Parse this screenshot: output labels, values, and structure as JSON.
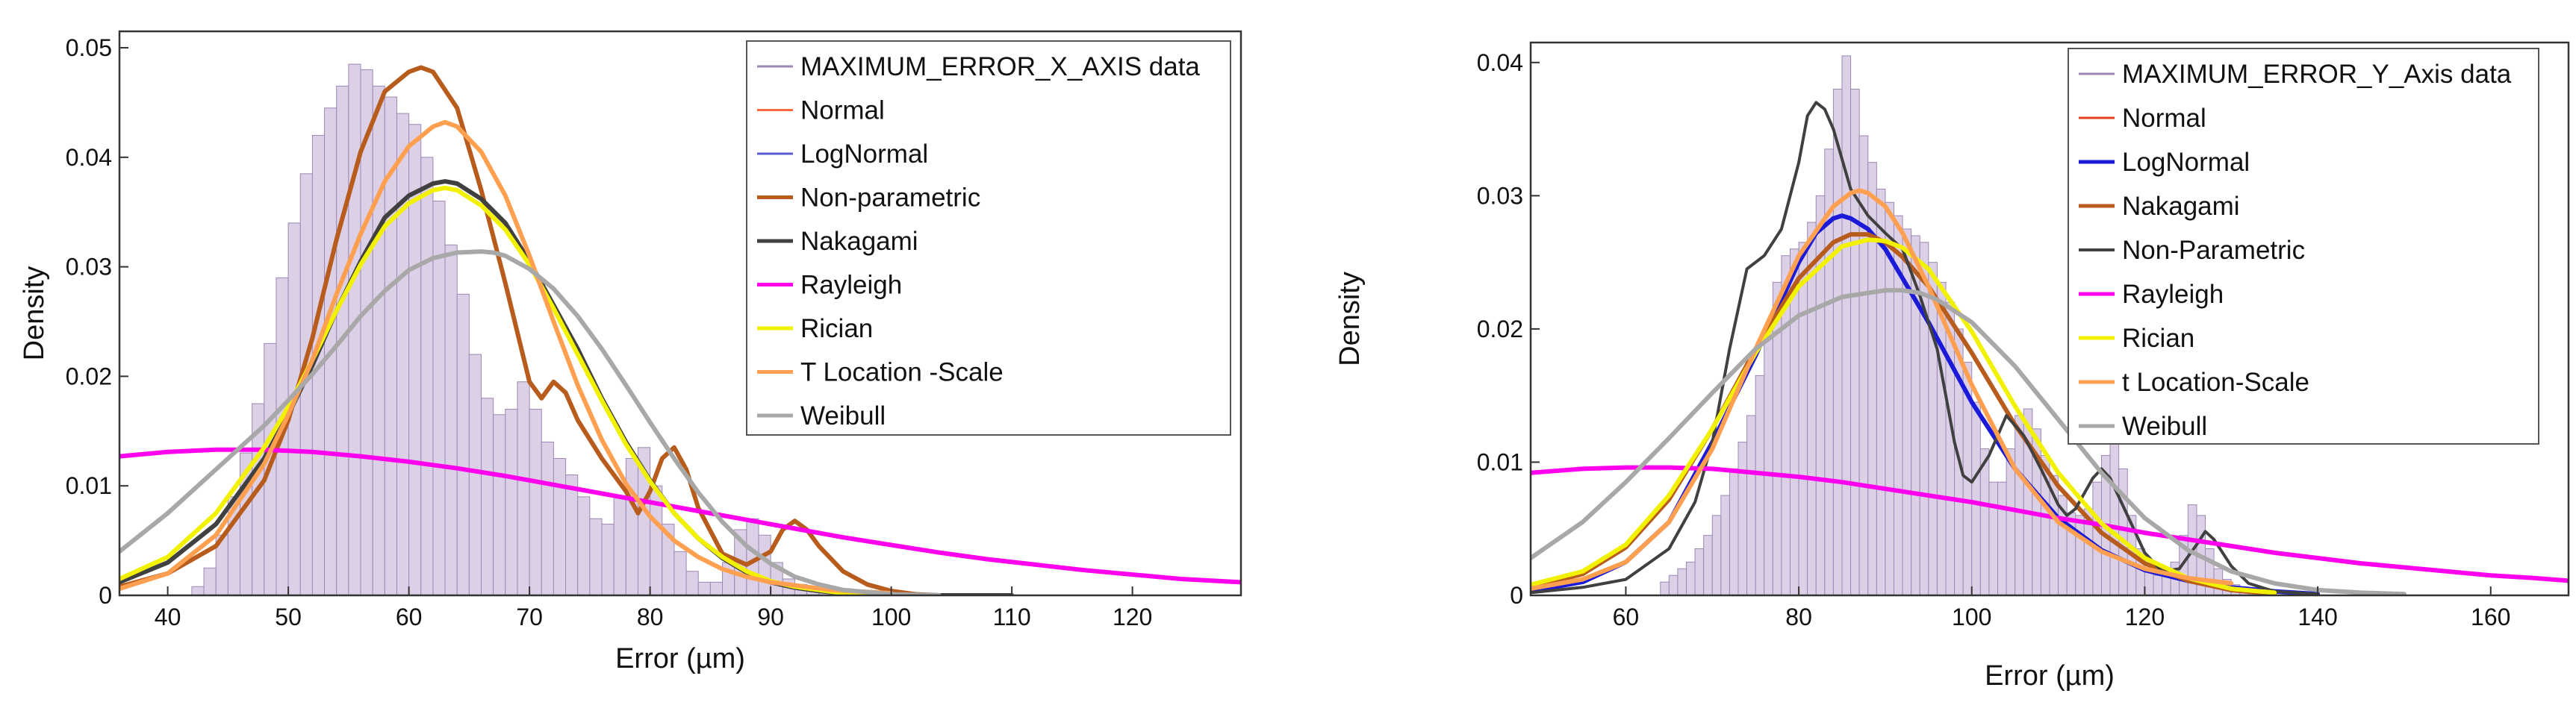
{
  "chart_data": [
    {
      "type": "histogram+line",
      "xlabel": "Error (µm)",
      "ylabel": "Density",
      "xlim": [
        36,
        129
      ],
      "ylim": [
        0,
        0.0515
      ],
      "xticks": [
        40,
        50,
        60,
        70,
        80,
        90,
        100,
        110,
        120
      ],
      "yticks": [
        0,
        0.01,
        0.02,
        0.03,
        0.04,
        0.05
      ],
      "ytick_labels": [
        "0",
        "0.01",
        "0.02",
        "0.03",
        "0.04",
        "0.05"
      ],
      "legend_placement": "top-right",
      "histogram": {
        "name": "MAXIMUM_ERROR_X_AXIS data",
        "color": "#9c88b4",
        "x_start": 42,
        "bin_width": 1,
        "values": [
          0.0008,
          0.0025,
          0.0055,
          0.009,
          0.013,
          0.0175,
          0.023,
          0.029,
          0.034,
          0.0385,
          0.042,
          0.0445,
          0.0465,
          0.0485,
          0.048,
          0.0465,
          0.0455,
          0.044,
          0.043,
          0.04,
          0.036,
          0.032,
          0.0275,
          0.022,
          0.018,
          0.0165,
          0.017,
          0.0195,
          0.017,
          0.014,
          0.0125,
          0.011,
          0.009,
          0.007,
          0.0065,
          0.009,
          0.0125,
          0.0135,
          0.01,
          0.0065,
          0.004,
          0.0022,
          0.0012,
          0.0012,
          0.003,
          0.006,
          0.007,
          0.0055,
          0.003,
          0.0015,
          0.001,
          0.0006,
          0.0003,
          0.0001
        ]
      },
      "series": [
        {
          "name": "Normal",
          "color": "#ff6a3d",
          "width": 3,
          "visible_curve": false
        },
        {
          "name": "LogNormal",
          "color": "#5b5bd6",
          "width": 3,
          "visible_curve": false
        },
        {
          "name": "Non-parametric",
          "color": "#b85c1e",
          "width": 6,
          "x": [
            36,
            40,
            44,
            48,
            50,
            52,
            54,
            56,
            58,
            60,
            61,
            62,
            64,
            66,
            68,
            70,
            71,
            72,
            73,
            74,
            76,
            78,
            79,
            80,
            81,
            82,
            83,
            84,
            86,
            88,
            90,
            91,
            92,
            93,
            94,
            96,
            98,
            100,
            102,
            104
          ],
          "y": [
            0.0008,
            0.002,
            0.0045,
            0.0105,
            0.016,
            0.0235,
            0.0325,
            0.0405,
            0.046,
            0.0478,
            0.0482,
            0.0478,
            0.0445,
            0.037,
            0.0285,
            0.0195,
            0.018,
            0.0195,
            0.0185,
            0.016,
            0.0125,
            0.0095,
            0.0075,
            0.0095,
            0.0125,
            0.0135,
            0.0115,
            0.008,
            0.0038,
            0.0028,
            0.004,
            0.006,
            0.0068,
            0.006,
            0.0045,
            0.0022,
            0.001,
            0.0004,
            0.0001,
            0.0
          ]
        },
        {
          "name": "Nakagami",
          "color": "#404040",
          "width": 6,
          "x": [
            36,
            40,
            44,
            48,
            50,
            52,
            54,
            56,
            58,
            60,
            62,
            63,
            64,
            66,
            68,
            70,
            72,
            74,
            76,
            78,
            80,
            82,
            84,
            86,
            88,
            90,
            92,
            94,
            96,
            100,
            104,
            110
          ],
          "y": [
            0.0012,
            0.003,
            0.0065,
            0.0125,
            0.0165,
            0.021,
            0.026,
            0.0305,
            0.0345,
            0.0365,
            0.0376,
            0.0378,
            0.0376,
            0.0362,
            0.034,
            0.0305,
            0.0265,
            0.0225,
            0.018,
            0.014,
            0.0105,
            0.0075,
            0.0052,
            0.0034,
            0.0021,
            0.0012,
            0.0007,
            0.0004,
            0.0002,
            0.0001,
            0.0,
            0.0
          ]
        },
        {
          "name": "Rayleigh",
          "color": "#ff00ee",
          "width": 6,
          "x": [
            36,
            40,
            44,
            46,
            48,
            52,
            56,
            60,
            64,
            68,
            72,
            76,
            80,
            84,
            88,
            92,
            96,
            100,
            104,
            108,
            112,
            116,
            120,
            124,
            129
          ],
          "y": [
            0.0127,
            0.0131,
            0.0133,
            0.0133,
            0.0133,
            0.0131,
            0.0127,
            0.0122,
            0.0116,
            0.0109,
            0.0101,
            0.0093,
            0.0085,
            0.0077,
            0.0069,
            0.0061,
            0.0053,
            0.0046,
            0.0039,
            0.0033,
            0.0028,
            0.0023,
            0.0019,
            0.0015,
            0.0012
          ]
        },
        {
          "name": "Rician",
          "color": "#f2f200",
          "width": 6,
          "x": [
            36,
            40,
            44,
            48,
            50,
            52,
            54,
            56,
            58,
            60,
            62,
            63,
            64,
            66,
            68,
            70,
            72,
            74,
            76,
            78,
            80,
            82,
            84,
            86,
            88,
            90,
            92,
            96,
            100
          ],
          "y": [
            0.0015,
            0.0035,
            0.0075,
            0.0135,
            0.0172,
            0.0215,
            0.026,
            0.0302,
            0.0337,
            0.0358,
            0.037,
            0.0372,
            0.037,
            0.0356,
            0.0334,
            0.0302,
            0.0262,
            0.022,
            0.0178,
            0.0138,
            0.0104,
            0.0075,
            0.0052,
            0.0035,
            0.0022,
            0.0013,
            0.0008,
            0.0002,
            0.0
          ]
        },
        {
          "name": "T Location -Scale",
          "color": "#ff9f50",
          "width": 6,
          "x": [
            36,
            40,
            44,
            48,
            50,
            52,
            54,
            56,
            58,
            60,
            62,
            63,
            64,
            66,
            68,
            70,
            72,
            74,
            76,
            78,
            80,
            82,
            84,
            86,
            88,
            90,
            95,
            100
          ],
          "y": [
            0.0006,
            0.002,
            0.0055,
            0.012,
            0.0165,
            0.0215,
            0.0275,
            0.033,
            0.0378,
            0.041,
            0.0428,
            0.0432,
            0.0428,
            0.0405,
            0.0365,
            0.031,
            0.025,
            0.0192,
            0.0142,
            0.0102,
            0.0072,
            0.005,
            0.0035,
            0.0024,
            0.0017,
            0.0012,
            0.0005,
            0.0002
          ]
        },
        {
          "name": "Weibull",
          "color": "#a8a8a8",
          "width": 6,
          "x": [
            36,
            40,
            44,
            48,
            50,
            52,
            54,
            56,
            58,
            60,
            62,
            64,
            66,
            67,
            68,
            70,
            72,
            74,
            76,
            78,
            80,
            82,
            84,
            86,
            88,
            90,
            92,
            94,
            96,
            100,
            104
          ],
          "y": [
            0.004,
            0.0075,
            0.0115,
            0.0155,
            0.0178,
            0.0202,
            0.0228,
            0.0255,
            0.0278,
            0.0297,
            0.0308,
            0.0313,
            0.0314,
            0.0313,
            0.031,
            0.0298,
            0.028,
            0.0255,
            0.0225,
            0.0192,
            0.0158,
            0.0125,
            0.0094,
            0.0067,
            0.0045,
            0.0029,
            0.0017,
            0.001,
            0.0005,
            0.0001,
            0.0
          ]
        }
      ]
    },
    {
      "type": "histogram+line",
      "xlabel": "Error (µm)",
      "ylabel": "Density",
      "xlim": [
        49,
        169
      ],
      "ylim": [
        0,
        0.0415
      ],
      "xticks": [
        60,
        80,
        100,
        120,
        140,
        160
      ],
      "yticks": [
        0,
        0.01,
        0.02,
        0.03,
        0.04
      ],
      "ytick_labels": [
        "0",
        "0.01",
        "0.02",
        "0.03",
        "0.04"
      ],
      "legend_placement": "top-right",
      "histogram": {
        "name": "MAXIMUM_ERROR_Y_Axis data",
        "color": "#9c88b4",
        "x_start": 64,
        "bin_width": 1,
        "values": [
          0.001,
          0.0015,
          0.002,
          0.0025,
          0.0035,
          0.0045,
          0.006,
          0.0075,
          0.0095,
          0.0115,
          0.0135,
          0.0165,
          0.02,
          0.0235,
          0.0255,
          0.026,
          0.0265,
          0.028,
          0.03,
          0.0335,
          0.038,
          0.0405,
          0.038,
          0.0345,
          0.0325,
          0.0305,
          0.0295,
          0.0285,
          0.0275,
          0.027,
          0.0265,
          0.025,
          0.0235,
          0.022,
          0.02,
          0.0175,
          0.0145,
          0.011,
          0.0085,
          0.0085,
          0.011,
          0.0135,
          0.014,
          0.0125,
          0.0105,
          0.009,
          0.0075,
          0.0062,
          0.006,
          0.0065,
          0.0085,
          0.0105,
          0.0115,
          0.0095,
          0.006,
          0.0035,
          0.002,
          0.0015,
          0.0015,
          0.0025,
          0.0045,
          0.0068,
          0.006,
          0.0035,
          0.002,
          0.0012,
          0.0008,
          0.0005,
          0.0004,
          0.0003,
          0.0002,
          0.0002,
          0.0001,
          0.0001
        ]
      },
      "series": [
        {
          "name": "Normal",
          "color": "#e04020",
          "width": 3,
          "visible_curve": false
        },
        {
          "name": "LogNormal",
          "color": "#1a1ad8",
          "width": 6,
          "x": [
            49,
            55,
            60,
            65,
            70,
            75,
            80,
            82,
            84,
            85,
            86,
            88,
            90,
            92,
            95,
            100,
            105,
            110,
            115,
            120,
            125,
            130,
            135,
            140
          ],
          "y": [
            0.0003,
            0.001,
            0.0025,
            0.0055,
            0.0115,
            0.018,
            0.025,
            0.0272,
            0.0283,
            0.0285,
            0.0283,
            0.0275,
            0.026,
            0.0238,
            0.0205,
            0.0145,
            0.0095,
            0.0058,
            0.0034,
            0.0019,
            0.0011,
            0.0006,
            0.0003,
            0.0001
          ]
        },
        {
          "name": "Nakagami",
          "color": "#b85c1e",
          "width": 6,
          "x": [
            49,
            55,
            60,
            65,
            70,
            75,
            80,
            84,
            86,
            88,
            90,
            92,
            95,
            100,
            105,
            110,
            115,
            120,
            125,
            130,
            135
          ],
          "y": [
            0.0006,
            0.0016,
            0.0036,
            0.0072,
            0.0125,
            0.0185,
            0.0238,
            0.0265,
            0.0271,
            0.0271,
            0.0265,
            0.0254,
            0.0232,
            0.0182,
            0.0128,
            0.0082,
            0.0047,
            0.0024,
            0.0011,
            0.0004,
            0.0001
          ]
        },
        {
          "name": "Non-Parametric",
          "color": "#404040",
          "width": 4,
          "x": [
            49,
            55,
            60,
            65,
            68,
            70,
            72,
            74,
            76,
            78,
            80,
            81,
            82,
            83,
            84,
            86,
            88,
            90,
            92,
            94,
            96,
            98,
            99,
            100,
            102,
            104,
            106,
            108,
            110,
            111,
            112,
            114,
            115,
            116,
            118,
            120,
            122,
            124,
            126,
            127,
            128,
            130,
            132,
            135,
            140
          ],
          "y": [
            0.0002,
            0.0006,
            0.0012,
            0.0035,
            0.007,
            0.0115,
            0.0185,
            0.0245,
            0.0255,
            0.0275,
            0.0325,
            0.036,
            0.037,
            0.0365,
            0.035,
            0.0305,
            0.0285,
            0.0272,
            0.026,
            0.0225,
            0.0185,
            0.0115,
            0.009,
            0.0085,
            0.0105,
            0.0135,
            0.012,
            0.0095,
            0.0068,
            0.006,
            0.0065,
            0.0088,
            0.0095,
            0.0088,
            0.006,
            0.0032,
            0.0018,
            0.002,
            0.0038,
            0.0048,
            0.0042,
            0.0022,
            0.0009,
            0.0003,
            0.0001
          ]
        },
        {
          "name": "Rayleigh",
          "color": "#ff00ee",
          "width": 6,
          "x": [
            49,
            55,
            60,
            65,
            70,
            75,
            80,
            85,
            90,
            95,
            100,
            105,
            110,
            115,
            120,
            125,
            130,
            135,
            140,
            145,
            150,
            155,
            160,
            165,
            169
          ],
          "y": [
            0.0092,
            0.0095,
            0.0096,
            0.0096,
            0.0095,
            0.0092,
            0.0089,
            0.0085,
            0.008,
            0.0075,
            0.007,
            0.0064,
            0.0058,
            0.0053,
            0.0047,
            0.0042,
            0.0037,
            0.0032,
            0.0028,
            0.0024,
            0.0021,
            0.0018,
            0.0015,
            0.0013,
            0.0011
          ]
        },
        {
          "name": "Ricia​n",
          "color": "#f2f200",
          "width": 6,
          "x": [
            49,
            55,
            60,
            65,
            70,
            75,
            80,
            85,
            88,
            90,
            92,
            95,
            100,
            105,
            110,
            115,
            120,
            125,
            130,
            135
          ],
          "y": [
            0.0008,
            0.0018,
            0.0038,
            0.0075,
            0.0125,
            0.0182,
            0.0232,
            0.0262,
            0.0267,
            0.0266,
            0.0261,
            0.0245,
            0.0198,
            0.0142,
            0.0092,
            0.0054,
            0.0028,
            0.0013,
            0.0005,
            0.0002
          ]
        },
        {
          "name": "t Location-Scale",
          "color": "#ff9f50",
          "width": 6,
          "x": [
            49,
            55,
            60,
            65,
            70,
            75,
            80,
            84,
            86,
            87,
            88,
            90,
            92,
            95,
            100,
            105,
            110,
            115,
            120,
            125,
            130
          ],
          "y": [
            0.0005,
            0.0012,
            0.0025,
            0.0055,
            0.011,
            0.0185,
            0.0255,
            0.0292,
            0.0302,
            0.0304,
            0.0302,
            0.0292,
            0.0272,
            0.0232,
            0.0158,
            0.0095,
            0.0055,
            0.0033,
            0.002,
            0.0013,
            0.0009
          ]
        },
        {
          "name": "Weibull",
          "color": "#a8a8a8",
          "width": 6,
          "x": [
            49,
            55,
            60,
            65,
            70,
            75,
            80,
            85,
            90,
            92,
            94,
            96,
            100,
            105,
            110,
            115,
            120,
            125,
            130,
            135,
            140,
            145,
            150
          ],
          "y": [
            0.0028,
            0.0055,
            0.0085,
            0.0118,
            0.0152,
            0.0185,
            0.021,
            0.0224,
            0.0229,
            0.0229,
            0.0227,
            0.0222,
            0.0205,
            0.0172,
            0.0132,
            0.0092,
            0.0058,
            0.0034,
            0.0018,
            0.0009,
            0.0004,
            0.0002,
            0.0001
          ]
        }
      ]
    }
  ]
}
